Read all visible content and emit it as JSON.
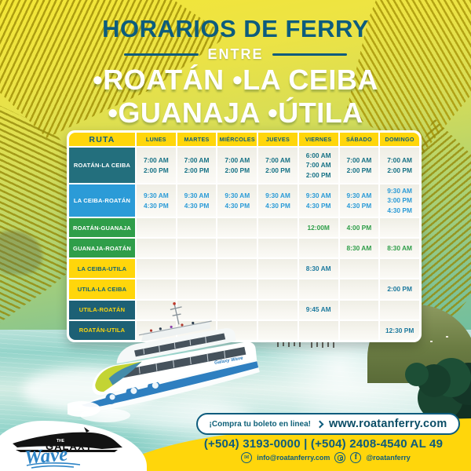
{
  "title": {
    "heading": "HORARIOS DE FERRY",
    "subheading": "ENTRE",
    "cities_line1": "•ROATÁN •LA CEIBA",
    "cities_line2": "•GUANAJA •ÚTILA"
  },
  "table": {
    "route_header": "RUTA",
    "day_headers": [
      "LUNES",
      "MARTES",
      "MIÉRCOLES",
      "JUEVES",
      "VIERNES",
      "SÁBADO",
      "DOMINGO"
    ],
    "rows": [
      {
        "route": "ROATÁN-LA CEIBA",
        "style": "teal",
        "times": [
          [
            "7:00 AM",
            "2:00 PM"
          ],
          [
            "7:00 AM",
            "2:00 PM"
          ],
          [
            "7:00 AM",
            "2:00 PM"
          ],
          [
            "7:00 AM",
            "2:00 PM"
          ],
          [
            "6:00 AM",
            "7:00 AM",
            "2:00 PM"
          ],
          [
            "7:00 AM",
            "2:00 PM"
          ],
          [
            "7:00 AM",
            "2:00 PM"
          ]
        ]
      },
      {
        "route": "LA CEIBA-ROATÁN",
        "style": "blue",
        "times": [
          [
            "9:30 AM",
            "4:30 PM"
          ],
          [
            "9:30 AM",
            "4:30 PM"
          ],
          [
            "9:30 AM",
            "4:30 PM"
          ],
          [
            "9:30 AM",
            "4:30 PM"
          ],
          [
            "9:30 AM",
            "4:30 PM"
          ],
          [
            "9:30 AM",
            "4:30 PM"
          ],
          [
            "9:30 AM",
            "3:00 PM",
            "4:30 PM"
          ]
        ]
      },
      {
        "route": "ROATÁN-GUANAJA",
        "style": "green",
        "times": [
          [],
          [],
          [],
          [],
          [
            "12:00M"
          ],
          [
            "4:00 PM"
          ],
          []
        ]
      },
      {
        "route": "GUANAJA-ROATÁN",
        "style": "green",
        "times": [
          [],
          [],
          [],
          [],
          [],
          [
            "8:30 AM"
          ],
          [
            "8:30 AM"
          ]
        ]
      },
      {
        "route": "LA CEIBA-UTILA",
        "style": "yellow",
        "times": [
          [],
          [],
          [],
          [],
          [
            "8:30 AM"
          ],
          [],
          []
        ]
      },
      {
        "route": "UTILA-LA CEIBA",
        "style": "yellow",
        "times": [
          [],
          [],
          [],
          [],
          [],
          [],
          [
            "2:00 PM"
          ]
        ]
      },
      {
        "route": "UTILA-ROATÁN",
        "style": "navy",
        "times": [
          [],
          [],
          [],
          [],
          [
            "9:45 AM"
          ],
          [],
          []
        ]
      },
      {
        "route": "ROATÁN-UTILA",
        "style": "navy",
        "times": [
          [],
          [],
          [],
          [],
          [],
          [],
          [
            "12:30 PM"
          ]
        ]
      }
    ]
  },
  "boat": {
    "name": "Galaxy Wave"
  },
  "logo": {
    "the": "THE",
    "galaxy": "GALAXY",
    "wave": "Wave"
  },
  "footer": {
    "cta": "¡Compra tu boleto en linea!",
    "website": "www.roatanferry.com",
    "phones": "(+504) 3193-0000 | (+504) 2408-4540 AL 49",
    "email": "info@roatanferry.com",
    "social_handle": "@roatanferry"
  },
  "icons": {
    "envelope": "✉",
    "facebook": "f"
  },
  "colors": {
    "teal_dark": "#0d5c7d",
    "yellow": "#ffd60b",
    "green": "#2f9e49",
    "blue": "#2b9bd7",
    "row_teal": "#236f7d",
    "row_navy": "#1d6075"
  }
}
